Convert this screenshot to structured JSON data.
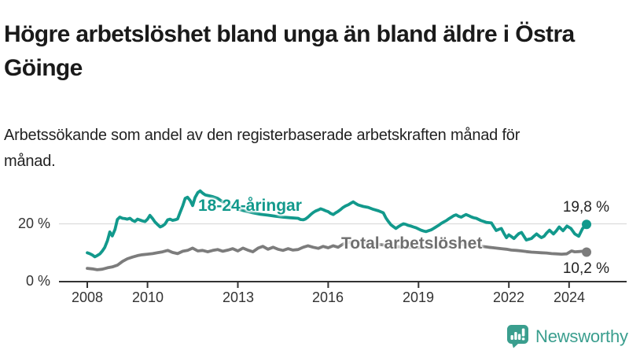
{
  "title": "Högre arbetslöshet bland unga än bland äldre i Östra Göinge",
  "subtitle": "Arbetssökande som andel av den registerbaserade arbetskraften månad för månad.",
  "branding": {
    "name": "Newsworthy",
    "icon": "bar-chart-speech-bubble-icon",
    "color": "#3a9e8e"
  },
  "colors": {
    "young_line": "#12998c",
    "total_line": "#7c7c7c",
    "total_label": "#6f6f6f",
    "grid": "#dcdcdc",
    "axis": "#333333",
    "value_label": "#222222",
    "text": "#1a1a1a"
  },
  "chart_data": {
    "type": "line",
    "unit": "%",
    "legend_position": "inline-labels",
    "grid": "horizontal-only",
    "x_axis": {
      "ticks": [
        2008,
        2010,
        2013,
        2016,
        2019,
        2022,
        2024
      ],
      "tick_labels": [
        "2008",
        "2010",
        "2013",
        "2016",
        "2019",
        "2022",
        "2024"
      ],
      "range": [
        2008,
        2024.6
      ]
    },
    "y_axis": {
      "ticks": [
        0,
        20
      ],
      "tick_labels": [
        "0 %",
        "20 %"
      ],
      "range": [
        0,
        33
      ],
      "gridlines": [
        20
      ]
    },
    "series": [
      {
        "name": "18-24-åringar",
        "color": "#12998c",
        "end_value": 19.8,
        "end_label": "19,8 %",
        "points": [
          [
            2008.0,
            10.0
          ],
          [
            2008.08,
            9.7
          ],
          [
            2008.17,
            9.2
          ],
          [
            2008.25,
            8.6
          ],
          [
            2008.33,
            9.0
          ],
          [
            2008.42,
            9.6
          ],
          [
            2008.5,
            10.6
          ],
          [
            2008.58,
            11.8
          ],
          [
            2008.67,
            14.2
          ],
          [
            2008.75,
            17.2
          ],
          [
            2008.83,
            15.8
          ],
          [
            2008.92,
            18.0
          ],
          [
            2009.0,
            21.5
          ],
          [
            2009.08,
            22.3
          ],
          [
            2009.17,
            21.9
          ],
          [
            2009.25,
            21.8
          ],
          [
            2009.33,
            21.6
          ],
          [
            2009.42,
            21.9
          ],
          [
            2009.5,
            21.2
          ],
          [
            2009.58,
            20.8
          ],
          [
            2009.67,
            21.6
          ],
          [
            2009.75,
            21.3
          ],
          [
            2009.83,
            21.0
          ],
          [
            2009.92,
            20.8
          ],
          [
            2010.0,
            21.6
          ],
          [
            2010.08,
            22.9
          ],
          [
            2010.17,
            21.8
          ],
          [
            2010.25,
            20.6
          ],
          [
            2010.33,
            19.8
          ],
          [
            2010.42,
            18.9
          ],
          [
            2010.5,
            19.3
          ],
          [
            2010.58,
            19.9
          ],
          [
            2010.67,
            21.4
          ],
          [
            2010.75,
            21.6
          ],
          [
            2010.83,
            21.2
          ],
          [
            2010.92,
            21.4
          ],
          [
            2011.0,
            21.7
          ],
          [
            2011.08,
            23.9
          ],
          [
            2011.17,
            26.2
          ],
          [
            2011.25,
            28.8
          ],
          [
            2011.33,
            29.2
          ],
          [
            2011.42,
            28.0
          ],
          [
            2011.5,
            26.3
          ],
          [
            2011.58,
            29.1
          ],
          [
            2011.67,
            30.8
          ],
          [
            2011.75,
            31.4
          ],
          [
            2011.83,
            30.6
          ],
          [
            2011.92,
            30.0
          ],
          [
            2012.0,
            29.8
          ],
          [
            2012.17,
            29.4
          ],
          [
            2012.33,
            28.8
          ],
          [
            2012.5,
            27.6
          ],
          [
            2012.67,
            26.6
          ],
          [
            2012.83,
            25.8
          ],
          [
            2013.0,
            25.1
          ],
          [
            2013.25,
            24.4
          ],
          [
            2013.5,
            23.8
          ],
          [
            2013.75,
            23.3
          ],
          [
            2014.0,
            23.0
          ],
          [
            2014.25,
            22.6
          ],
          [
            2014.5,
            22.3
          ],
          [
            2014.75,
            22.1
          ],
          [
            2015.0,
            21.9
          ],
          [
            2015.08,
            21.5
          ],
          [
            2015.17,
            21.4
          ],
          [
            2015.25,
            21.7
          ],
          [
            2015.33,
            22.3
          ],
          [
            2015.42,
            23.2
          ],
          [
            2015.5,
            23.9
          ],
          [
            2015.58,
            24.4
          ],
          [
            2015.67,
            24.8
          ],
          [
            2015.75,
            25.2
          ],
          [
            2015.83,
            24.9
          ],
          [
            2015.92,
            24.5
          ],
          [
            2016.0,
            24.2
          ],
          [
            2016.08,
            23.6
          ],
          [
            2016.17,
            23.2
          ],
          [
            2016.25,
            23.8
          ],
          [
            2016.33,
            24.3
          ],
          [
            2016.42,
            25.0
          ],
          [
            2016.5,
            25.7
          ],
          [
            2016.58,
            26.2
          ],
          [
            2016.67,
            26.6
          ],
          [
            2016.75,
            27.1
          ],
          [
            2016.83,
            27.6
          ],
          [
            2016.92,
            27.0
          ],
          [
            2017.0,
            26.5
          ],
          [
            2017.17,
            26.0
          ],
          [
            2017.33,
            25.7
          ],
          [
            2017.5,
            25.0
          ],
          [
            2017.67,
            24.5
          ],
          [
            2017.83,
            23.8
          ],
          [
            2017.92,
            22.0
          ],
          [
            2018.0,
            20.8
          ],
          [
            2018.08,
            19.7
          ],
          [
            2018.17,
            19.0
          ],
          [
            2018.25,
            18.4
          ],
          [
            2018.33,
            19.0
          ],
          [
            2018.42,
            19.6
          ],
          [
            2018.5,
            20.0
          ],
          [
            2018.58,
            19.8
          ],
          [
            2018.67,
            19.4
          ],
          [
            2018.75,
            19.2
          ],
          [
            2018.83,
            18.9
          ],
          [
            2018.92,
            18.6
          ],
          [
            2019.0,
            18.2
          ],
          [
            2019.08,
            17.8
          ],
          [
            2019.17,
            17.5
          ],
          [
            2019.25,
            17.3
          ],
          [
            2019.33,
            17.6
          ],
          [
            2019.42,
            17.9
          ],
          [
            2019.5,
            18.4
          ],
          [
            2019.58,
            18.9
          ],
          [
            2019.67,
            19.5
          ],
          [
            2019.75,
            20.1
          ],
          [
            2019.83,
            20.6
          ],
          [
            2019.92,
            21.1
          ],
          [
            2020.0,
            21.7
          ],
          [
            2020.08,
            22.2
          ],
          [
            2020.17,
            22.8
          ],
          [
            2020.25,
            23.1
          ],
          [
            2020.33,
            22.6
          ],
          [
            2020.42,
            22.3
          ],
          [
            2020.5,
            22.8
          ],
          [
            2020.58,
            23.2
          ],
          [
            2020.67,
            22.8
          ],
          [
            2020.75,
            22.4
          ],
          [
            2020.83,
            22.1
          ],
          [
            2020.92,
            21.9
          ],
          [
            2021.0,
            21.5
          ],
          [
            2021.08,
            21.1
          ],
          [
            2021.17,
            20.8
          ],
          [
            2021.25,
            20.5
          ],
          [
            2021.33,
            20.4
          ],
          [
            2021.42,
            20.3
          ],
          [
            2021.5,
            19.0
          ],
          [
            2021.58,
            17.7
          ],
          [
            2021.67,
            18.1
          ],
          [
            2021.75,
            18.4
          ],
          [
            2021.83,
            16.8
          ],
          [
            2021.92,
            15.2
          ],
          [
            2022.0,
            16.2
          ],
          [
            2022.08,
            15.6
          ],
          [
            2022.17,
            14.9
          ],
          [
            2022.25,
            15.8
          ],
          [
            2022.33,
            16.6
          ],
          [
            2022.42,
            17.0
          ],
          [
            2022.5,
            15.7
          ],
          [
            2022.58,
            14.4
          ],
          [
            2022.67,
            14.7
          ],
          [
            2022.75,
            14.9
          ],
          [
            2022.83,
            15.7
          ],
          [
            2022.92,
            16.5
          ],
          [
            2023.0,
            15.8
          ],
          [
            2023.08,
            15.2
          ],
          [
            2023.17,
            15.7
          ],
          [
            2023.25,
            16.8
          ],
          [
            2023.35,
            17.8
          ],
          [
            2023.48,
            16.5
          ],
          [
            2023.58,
            17.6
          ],
          [
            2023.67,
            18.9
          ],
          [
            2023.8,
            17.6
          ],
          [
            2023.93,
            19.2
          ],
          [
            2024.06,
            18.4
          ],
          [
            2024.19,
            16.5
          ],
          [
            2024.32,
            15.7
          ],
          [
            2024.45,
            18.4
          ],
          [
            2024.58,
            19.8
          ]
        ]
      },
      {
        "name": "Total arbetslöshet",
        "color": "#7c7c7c",
        "end_value": 10.2,
        "end_label": "10,2 %",
        "points": [
          [
            2008.0,
            4.6
          ],
          [
            2008.17,
            4.4
          ],
          [
            2008.33,
            4.1
          ],
          [
            2008.5,
            4.3
          ],
          [
            2008.67,
            4.8
          ],
          [
            2008.83,
            5.1
          ],
          [
            2009.0,
            5.7
          ],
          [
            2009.17,
            7.0
          ],
          [
            2009.33,
            7.9
          ],
          [
            2009.5,
            8.5
          ],
          [
            2009.67,
            9.0
          ],
          [
            2009.83,
            9.3
          ],
          [
            2010.0,
            9.5
          ],
          [
            2010.17,
            9.7
          ],
          [
            2010.33,
            10.0
          ],
          [
            2010.5,
            10.3
          ],
          [
            2010.67,
            10.8
          ],
          [
            2010.83,
            10.1
          ],
          [
            2011.0,
            9.7
          ],
          [
            2011.17,
            10.5
          ],
          [
            2011.33,
            10.8
          ],
          [
            2011.5,
            11.6
          ],
          [
            2011.67,
            10.6
          ],
          [
            2011.83,
            10.8
          ],
          [
            2012.0,
            10.3
          ],
          [
            2012.17,
            10.8
          ],
          [
            2012.33,
            11.1
          ],
          [
            2012.5,
            10.5
          ],
          [
            2012.67,
            10.9
          ],
          [
            2012.83,
            11.4
          ],
          [
            2013.0,
            10.6
          ],
          [
            2013.17,
            11.6
          ],
          [
            2013.33,
            10.9
          ],
          [
            2013.5,
            10.3
          ],
          [
            2013.67,
            11.6
          ],
          [
            2013.83,
            12.2
          ],
          [
            2014.0,
            11.2
          ],
          [
            2014.17,
            11.9
          ],
          [
            2014.33,
            11.2
          ],
          [
            2014.5,
            10.8
          ],
          [
            2014.67,
            11.4
          ],
          [
            2014.83,
            10.9
          ],
          [
            2015.0,
            11.1
          ],
          [
            2015.17,
            11.9
          ],
          [
            2015.33,
            12.4
          ],
          [
            2015.5,
            11.9
          ],
          [
            2015.67,
            11.5
          ],
          [
            2015.83,
            12.2
          ],
          [
            2016.0,
            11.7
          ],
          [
            2016.17,
            12.4
          ],
          [
            2016.33,
            11.9
          ],
          [
            2016.5,
            13.0
          ],
          [
            2016.67,
            13.5
          ],
          [
            2016.83,
            13.8
          ],
          [
            2017.0,
            13.6
          ],
          [
            2017.25,
            13.4
          ],
          [
            2017.5,
            13.1
          ],
          [
            2017.75,
            12.8
          ],
          [
            2018.0,
            12.5
          ],
          [
            2018.25,
            12.2
          ],
          [
            2018.5,
            12.0
          ],
          [
            2018.75,
            11.9
          ],
          [
            2019.0,
            11.8
          ],
          [
            2019.25,
            11.9
          ],
          [
            2019.5,
            12.0
          ],
          [
            2019.75,
            12.1
          ],
          [
            2020.0,
            12.2
          ],
          [
            2020.17,
            12.6
          ],
          [
            2020.33,
            13.0
          ],
          [
            2020.5,
            12.9
          ],
          [
            2020.67,
            12.8
          ],
          [
            2020.83,
            12.6
          ],
          [
            2021.0,
            12.3
          ],
          [
            2021.17,
            12.1
          ],
          [
            2021.33,
            11.9
          ],
          [
            2021.5,
            11.7
          ],
          [
            2021.58,
            11.6
          ],
          [
            2021.75,
            11.4
          ],
          [
            2021.92,
            11.2
          ],
          [
            2022.08,
            10.9
          ],
          [
            2022.25,
            10.8
          ],
          [
            2022.42,
            10.6
          ],
          [
            2022.58,
            10.4
          ],
          [
            2022.75,
            10.2
          ],
          [
            2022.92,
            10.1
          ],
          [
            2023.08,
            10.0
          ],
          [
            2023.25,
            9.9
          ],
          [
            2023.42,
            9.7
          ],
          [
            2023.58,
            9.6
          ],
          [
            2023.75,
            9.5
          ],
          [
            2023.92,
            9.6
          ],
          [
            2024.08,
            10.6
          ],
          [
            2024.19,
            10.3
          ],
          [
            2024.32,
            10.4
          ],
          [
            2024.45,
            10.5
          ],
          [
            2024.58,
            10.2
          ]
        ]
      }
    ]
  }
}
